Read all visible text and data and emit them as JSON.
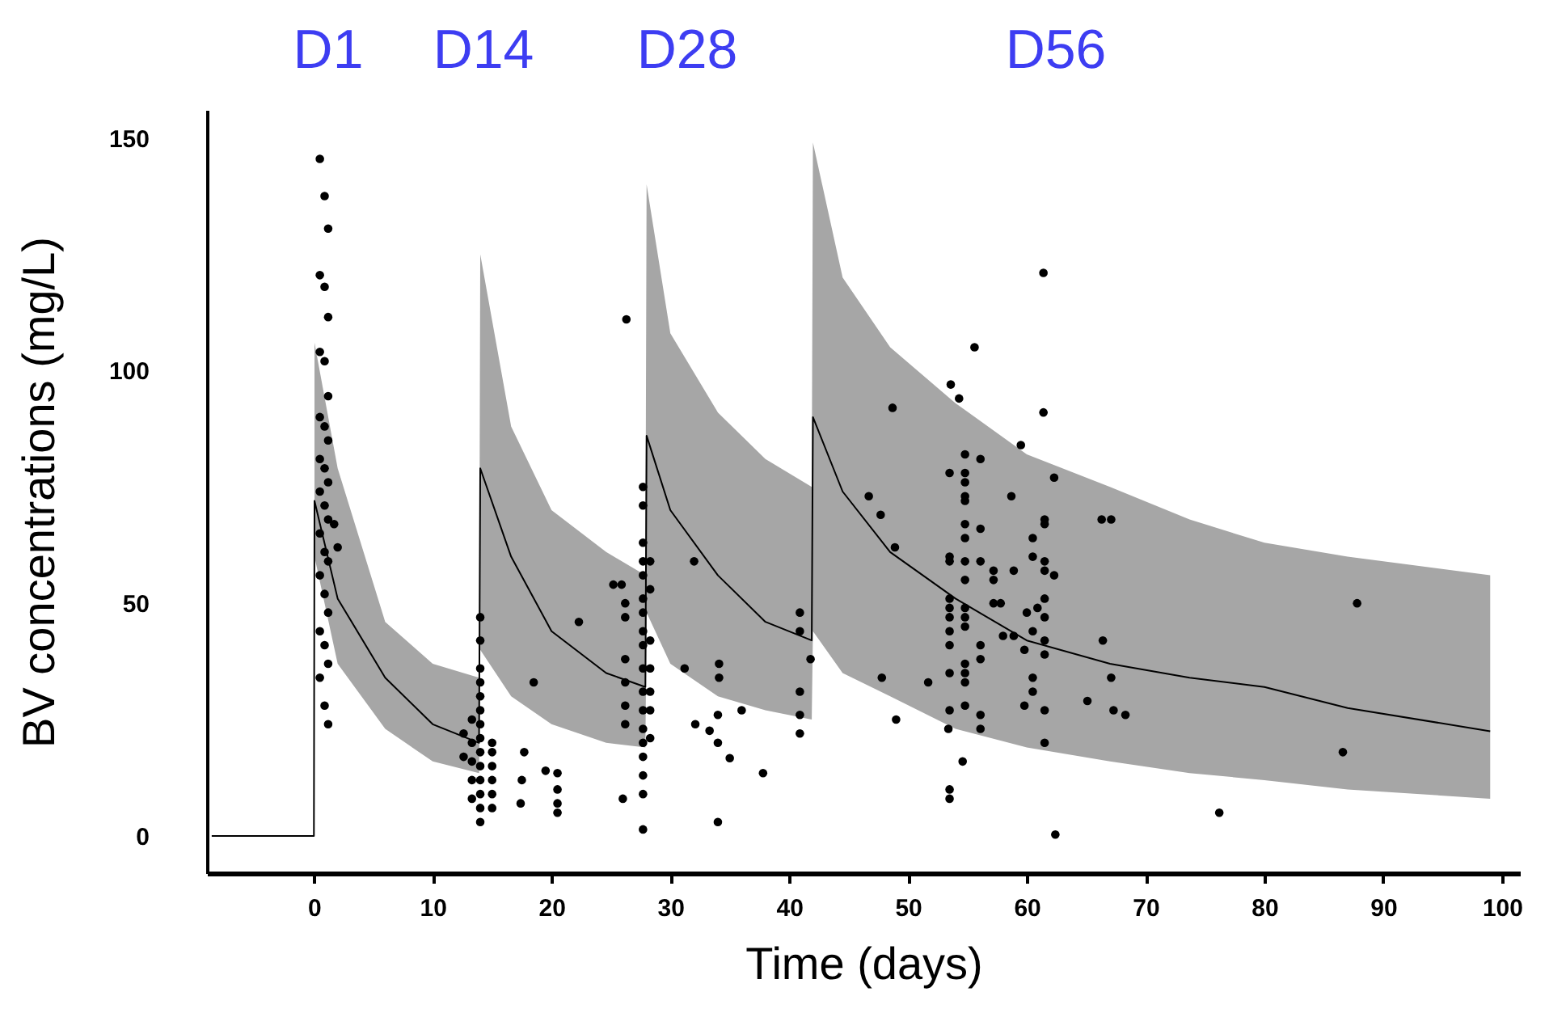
{
  "chart_data": {
    "type": "scatter",
    "xlabel": "Time (days)",
    "ylabel": "BV concentrations (mg/L)",
    "annotations": [
      "D1",
      "D14",
      "D28",
      "D56"
    ],
    "xlim": [
      -9,
      101.5
    ],
    "xticks": [
      0,
      10,
      20,
      30,
      40,
      50,
      60,
      70,
      80,
      90,
      100
    ],
    "ylim": [
      -8,
      156
    ],
    "yticks": [
      0,
      50,
      100,
      150
    ],
    "grid": false,
    "series": [
      {
        "type": "line",
        "color": "#000000",
        "line_style": "solid",
        "x": [
          -8.6,
          0,
          0.05,
          2,
          6,
          10,
          13.9,
          14,
          16.6,
          20,
          24.6,
          27.9,
          28,
          30,
          34,
          38,
          41.9,
          42,
          44.5,
          48.5,
          54,
          60,
          67,
          73.7,
          80,
          87,
          99
        ],
        "values": [
          0,
          0,
          72,
          51,
          34,
          24,
          20,
          79,
          60,
          44,
          35,
          32,
          86,
          70,
          56,
          46,
          42,
          90,
          74,
          61,
          51,
          42,
          37,
          34,
          32,
          27.5,
          22.5
        ],
        "lower": [
          null,
          null,
          60,
          37,
          23,
          16,
          13.5,
          40,
          30,
          24,
          20,
          19,
          48,
          37,
          30,
          27,
          25,
          44,
          35,
          30,
          23,
          19,
          16,
          13.5,
          12,
          10,
          8
        ],
        "upper": [
          null,
          null,
          106,
          79,
          46,
          37,
          34,
          125,
          88,
          70,
          61,
          56,
          140,
          108,
          91,
          81,
          75,
          149,
          120,
          105,
          93,
          82,
          75,
          68,
          63,
          60,
          56
        ]
      },
      {
        "type": "scatter",
        "color": "#000000",
        "marker": "circle",
        "x": [
          0.5,
          0.9,
          1.2,
          0.5,
          0.9,
          1.2,
          0.5,
          0.9,
          1.2,
          0.5,
          0.9,
          1.2,
          0.5,
          0.9,
          1.2,
          0.5,
          0.9,
          1.2,
          0.5,
          0.9,
          1.2,
          0.5,
          0.9,
          1.2,
          0.5,
          0.9,
          1.2,
          0.5,
          0.9,
          1.2,
          1.7,
          2,
          14,
          14,
          14,
          14,
          14,
          14,
          14,
          14,
          14,
          14,
          14,
          14,
          14,
          14,
          13.3,
          13.3,
          13.3,
          13.3,
          13.3,
          12.6,
          12.6,
          15,
          15,
          15,
          15,
          15,
          15,
          17.7,
          17.5,
          17.4,
          19.5,
          20.5,
          20.5,
          20.5,
          20.5,
          18.5,
          22.3,
          26.3,
          27.7,
          27.7,
          27.7,
          27.7,
          27.7,
          27.7,
          27.7,
          27.7,
          27.7,
          27.7,
          27.7,
          27.7,
          27.7,
          27.7,
          27.7,
          27.7,
          27.7,
          27.7,
          25.2,
          25.9,
          26.2,
          26.2,
          26.2,
          26.2,
          26.2,
          26.2,
          28.3,
          28.3,
          28.3,
          28.3,
          28.3,
          28.3,
          28.3,
          26,
          31.2,
          32,
          34.1,
          34.1,
          34,
          34,
          32.1,
          33.3,
          36,
          35,
          37.8,
          34,
          40.9,
          40.9,
          40.9,
          40.9,
          40.9,
          41.8,
          61.4,
          55.6,
          53.6,
          54.3,
          48.7,
          61.4,
          59.5,
          62.3,
          46.7,
          47.7,
          58.7,
          66.3,
          67.1,
          48.9,
          87.8,
          47.8,
          51.7,
          49,
          65.1,
          66.4,
          67.1,
          67.3,
          68.3,
          86.6,
          76.2,
          62.4,
          53.5,
          53.5,
          54.6,
          53.4,
          53.5,
          53.5,
          53.5,
          53.5,
          53.5,
          53.5,
          53.5,
          53.5,
          53.5,
          53.5,
          54.8,
          54.8,
          54.8,
          54.8,
          54.8,
          54.8,
          54.8,
          54.8,
          54.8,
          54.8,
          54.8,
          54.8,
          54.8,
          54.8,
          54.8,
          54.8,
          56.1,
          56.1,
          56.1,
          56.1,
          56.1,
          56.1,
          56.1,
          57.2,
          57.2,
          57.2,
          57.8,
          58.9,
          58,
          58.9,
          59.8,
          59.8,
          60,
          60.5,
          60.5,
          60.5,
          60.5,
          60.5,
          60.9,
          61.5,
          61.5,
          61.5,
          61.5,
          61.5,
          61.5,
          61.5,
          61.5,
          61.5,
          61.5,
          62.3
        ],
        "values": [
          145.5,
          137.5,
          130.5,
          120.5,
          118,
          111.5,
          104,
          102,
          94.5,
          90,
          88,
          85,
          81,
          79,
          76,
          74,
          71,
          68,
          65,
          61,
          59,
          56,
          52,
          48,
          44,
          41,
          37,
          34,
          28,
          24,
          67,
          62,
          47,
          42,
          36,
          33,
          30,
          27,
          24,
          21,
          18,
          15,
          12,
          9,
          6,
          3,
          25,
          20,
          16,
          12,
          8,
          22,
          17,
          20,
          18,
          15,
          12,
          9,
          6,
          18,
          12,
          7,
          14,
          13.5,
          10,
          7,
          5,
          33,
          46,
          111,
          75,
          71,
          63,
          59,
          56,
          51,
          48,
          44,
          41,
          36,
          31,
          27,
          23,
          20,
          17,
          13,
          9,
          1.4,
          54,
          54,
          50,
          47,
          38,
          33,
          28,
          24,
          59,
          53,
          42,
          36,
          31,
          27,
          21,
          8,
          36,
          59,
          37,
          34,
          26,
          20,
          24,
          22.6,
          27,
          16.7,
          13.5,
          3,
          48,
          44,
          31,
          26,
          22,
          38,
          121,
          105,
          97,
          94,
          92,
          91,
          84,
          77,
          73,
          69,
          73,
          68,
          68,
          62,
          50,
          34,
          33,
          25,
          29,
          42,
          34,
          27,
          26,
          18,
          5,
          0.3,
          10,
          8,
          16,
          23,
          78,
          60,
          59,
          51,
          49,
          47,
          44,
          41,
          35,
          27,
          82,
          78,
          76,
          73,
          72,
          67,
          64,
          59,
          55,
          49,
          47,
          45,
          37,
          35,
          33,
          28,
          81,
          66,
          59,
          41,
          38,
          26,
          23,
          57,
          55,
          50,
          50,
          57,
          43,
          43,
          40,
          28,
          48,
          64,
          60,
          44,
          34,
          31,
          49,
          68,
          67,
          59,
          57,
          51,
          47,
          42,
          39,
          27,
          20,
          56
        ]
      }
    ]
  }
}
